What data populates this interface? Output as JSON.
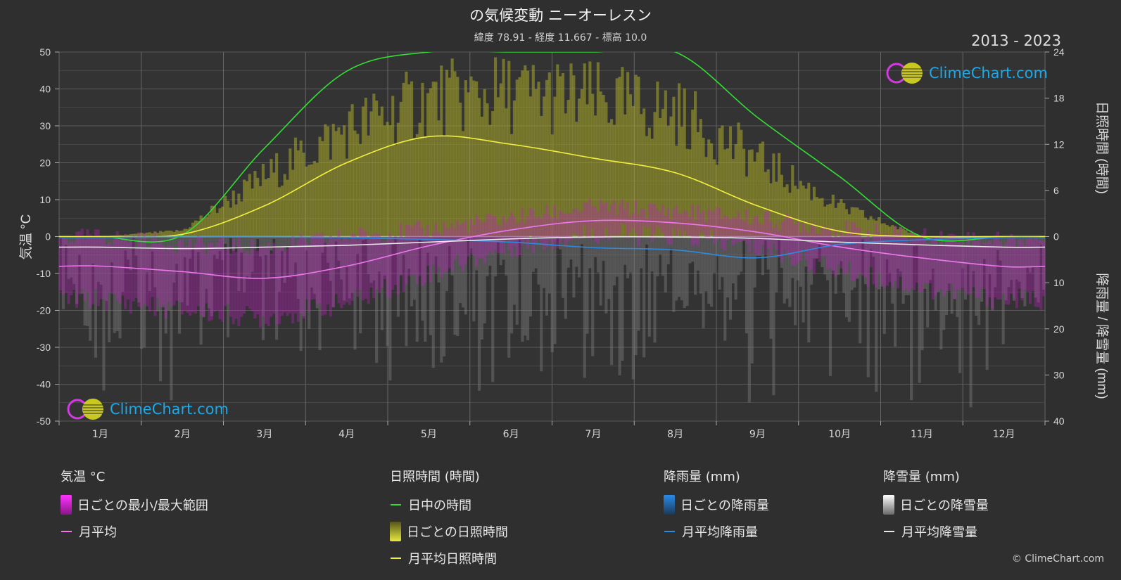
{
  "title": "の気候変動 ニーオーレスン",
  "subtitle": "緯度 78.91 - 経度 11.667 - 標高 10.0",
  "years": "2013 - 2023",
  "logo_text": "ClimeChart.com",
  "copyright": "© ClimeChart.com",
  "colors": {
    "daylight": "#33dd33",
    "sunshine_avg": "#f0f040",
    "sunshine_bars": "#a8a82a",
    "temp_avg": "#ee77ee",
    "temp_range": "#c020c0",
    "rain_avg": "#2d8ae0",
    "snow_avg": "#e8e8e8",
    "precip_bars": "#7a7a7a",
    "grid": "#5a5a5a"
  },
  "legend": {
    "temp": {
      "header": "気温 °C",
      "items": [
        "日ごとの最小/最大範囲",
        "月平均"
      ]
    },
    "sun": {
      "header": "日照時間 (時間)",
      "items": [
        "日中の時間",
        "日ごとの日照時間",
        "月平均日照時間"
      ]
    },
    "rain": {
      "header": "降雨量 (mm)",
      "items": [
        "日ごとの降雨量",
        "月平均降雨量"
      ]
    },
    "snow": {
      "header": "降雪量 (mm)",
      "items": [
        "日ごとの降雪量",
        "月平均降雪量"
      ]
    }
  },
  "chart_data": {
    "type": "line",
    "categories": [
      "1月",
      "2月",
      "3月",
      "4月",
      "5月",
      "6月",
      "7月",
      "8月",
      "9月",
      "10月",
      "11月",
      "12月"
    ],
    "y_left": {
      "label": "気温 °C",
      "ticks": [
        50,
        40,
        30,
        20,
        10,
        0,
        -10,
        -20,
        -30,
        -40,
        -50
      ],
      "range": [
        -50,
        50
      ]
    },
    "y_right_top": {
      "label": "日照時間 (時間)",
      "ticks": [
        24,
        18,
        12,
        6,
        0
      ],
      "range": [
        0,
        24
      ]
    },
    "y_right_bottom": {
      "label": "降雨量 / 降雪量 (mm)",
      "ticks": [
        0,
        10,
        20,
        30,
        40
      ],
      "range": [
        0,
        40
      ]
    },
    "grid": true,
    "series": [
      {
        "name": "日中の時間",
        "unit": "hours",
        "values": [
          0,
          0.2,
          11.5,
          21.5,
          24,
          24,
          24,
          24,
          15.5,
          7.8,
          0,
          0
        ]
      },
      {
        "name": "月平均日照時間",
        "unit": "hours",
        "values": [
          0,
          0.3,
          4,
          9.6,
          13,
          12,
          10.2,
          8.3,
          4,
          0.7,
          0,
          0
        ]
      },
      {
        "name": "月平均",
        "unit": "°C",
        "values": [
          -8,
          -9.5,
          -11.3,
          -8,
          -2.5,
          1.8,
          4.3,
          3.7,
          1.2,
          -2.8,
          -5.8,
          -8.1
        ]
      },
      {
        "name": "月平均降雨量",
        "unit": "mm",
        "values": [
          0.2,
          0.1,
          0.1,
          0.2,
          0.6,
          1.2,
          2.4,
          2.9,
          4.6,
          1.7,
          0.7,
          0.2
        ]
      },
      {
        "name": "月平均降雪量",
        "unit": "mm",
        "values": [
          2.3,
          2.6,
          2.3,
          1.9,
          1.2,
          0.5,
          0.1,
          0.1,
          0.4,
          1.2,
          1.8,
          2.3
        ]
      }
    ],
    "daily_sunshine_max_hours": [
      0,
      1,
      10,
      18,
      23,
      24,
      23,
      21,
      13,
      5,
      0,
      0
    ],
    "daily_temp_max": [
      0,
      -2,
      -3,
      0,
      2,
      5,
      8,
      7,
      5,
      2,
      0,
      -1
    ],
    "daily_temp_min": [
      -17,
      -20,
      -22,
      -18,
      -10,
      -3,
      1,
      0,
      -3,
      -9,
      -14,
      -17
    ]
  }
}
